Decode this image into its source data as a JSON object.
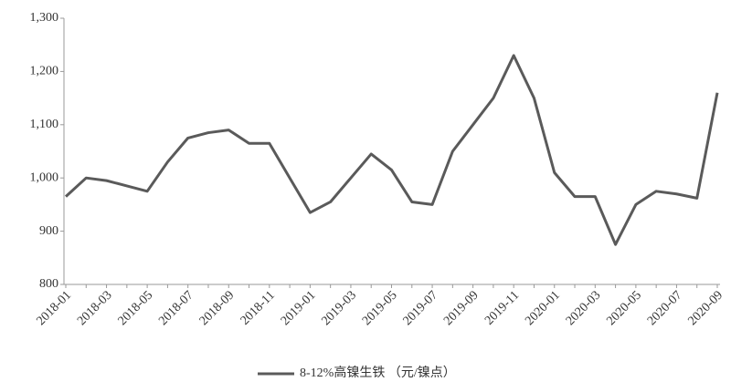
{
  "chart_data": {
    "type": "line",
    "categories": [
      "2018-01",
      null,
      "2018-03",
      null,
      "2018-05",
      null,
      "2018-07",
      null,
      "2018-09",
      null,
      "2018-11",
      null,
      "2019-01",
      null,
      "2019-03",
      null,
      "2019-05",
      null,
      "2019-07",
      null,
      "2019-09",
      null,
      "2019-11",
      null,
      "2020-01",
      null,
      "2020-03",
      null,
      "2020-05",
      null,
      "2020-07",
      null,
      "2020-09"
    ],
    "series": [
      {
        "name": "8-12%高镍生铁 （元/镍点）",
        "color": "#5a5a5a",
        "values": [
          965,
          1000,
          995,
          985,
          975,
          1030,
          1075,
          1085,
          1090,
          1065,
          1065,
          1000,
          935,
          955,
          1000,
          1045,
          1015,
          955,
          950,
          1050,
          1100,
          1150,
          1230,
          1150,
          1010,
          965,
          965,
          875,
          950,
          975,
          970,
          962,
          1160
        ]
      }
    ],
    "ylim": [
      800,
      1300
    ],
    "yticks": [
      800,
      900,
      {
        "value": 1000,
        "label": "1,000"
      },
      {
        "value": 1100,
        "label": "1,100"
      },
      {
        "value": 1200,
        "label": "1,200"
      },
      {
        "value": 1300,
        "label": "1,300"
      }
    ],
    "legend": "bottom"
  }
}
